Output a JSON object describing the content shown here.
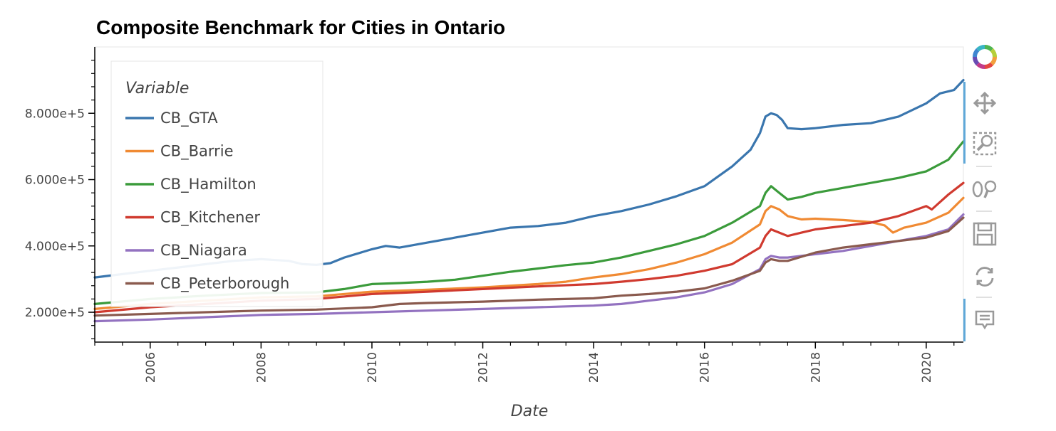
{
  "chart_data": {
    "type": "line",
    "title": "Composite Benchmark for Cities in Ontario",
    "xlabel": "Date",
    "ylabel": "",
    "legend_title": "Variable",
    "legend_position": "top-left",
    "xlim": [
      2005.0,
      2020.67
    ],
    "ylim": [
      110000,
      1000000
    ],
    "x_ticks": [
      2006,
      2008,
      2010,
      2012,
      2014,
      2016,
      2018,
      2020
    ],
    "y_ticks": [
      200000,
      400000,
      600000,
      800000
    ],
    "y_tick_labels": [
      "2.000e+5",
      "4.000e+5",
      "6.000e+5",
      "8.000e+5"
    ],
    "grid": false,
    "series": [
      {
        "name": "CB_GTA",
        "color": "#3a76ae",
        "x": [
          2005.0,
          2005.5,
          2006.0,
          2006.5,
          2007.0,
          2007.5,
          2008.0,
          2008.5,
          2008.75,
          2009.0,
          2009.25,
          2009.5,
          2010.0,
          2010.25,
          2010.5,
          2011.0,
          2011.5,
          2012.0,
          2012.5,
          2013.0,
          2013.5,
          2014.0,
          2014.5,
          2015.0,
          2015.5,
          2016.0,
          2016.5,
          2016.83,
          2017.0,
          2017.1,
          2017.2,
          2017.3,
          2017.4,
          2017.5,
          2017.75,
          2018.0,
          2018.5,
          2019.0,
          2019.5,
          2020.0,
          2020.25,
          2020.5,
          2020.67
        ],
        "y": [
          305000,
          315000,
          325000,
          335000,
          345000,
          355000,
          360000,
          355000,
          345000,
          343000,
          348000,
          365000,
          390000,
          400000,
          395000,
          410000,
          425000,
          440000,
          455000,
          460000,
          470000,
          490000,
          505000,
          525000,
          550000,
          580000,
          640000,
          690000,
          740000,
          790000,
          800000,
          795000,
          780000,
          755000,
          752000,
          755000,
          765000,
          770000,
          790000,
          830000,
          860000,
          870000,
          900000
        ]
      },
      {
        "name": "CB_Barrie",
        "color": "#f08a33",
        "x": [
          2005.0,
          2006.0,
          2007.0,
          2008.0,
          2009.0,
          2010.0,
          2011.0,
          2012.0,
          2013.0,
          2013.5,
          2014.0,
          2014.5,
          2015.0,
          2015.5,
          2016.0,
          2016.5,
          2017.0,
          2017.1,
          2017.2,
          2017.35,
          2017.5,
          2017.75,
          2018.0,
          2018.5,
          2019.0,
          2019.25,
          2019.4,
          2019.6,
          2020.0,
          2020.4,
          2020.67
        ],
        "y": [
          210000,
          225000,
          235000,
          245000,
          248000,
          262000,
          268000,
          275000,
          285000,
          292000,
          305000,
          315000,
          330000,
          350000,
          375000,
          410000,
          465000,
          505000,
          520000,
          510000,
          490000,
          480000,
          482000,
          478000,
          472000,
          462000,
          440000,
          455000,
          470000,
          500000,
          545000
        ]
      },
      {
        "name": "CB_Hamilton",
        "color": "#3b9b3b",
        "x": [
          2005.0,
          2006.0,
          2007.0,
          2008.0,
          2009.0,
          2009.5,
          2010.0,
          2010.5,
          2011.0,
          2011.5,
          2012.0,
          2012.5,
          2013.0,
          2013.5,
          2014.0,
          2014.5,
          2015.0,
          2015.5,
          2016.0,
          2016.5,
          2017.0,
          2017.1,
          2017.2,
          2017.35,
          2017.5,
          2017.75,
          2018.0,
          2018.5,
          2019.0,
          2019.5,
          2020.0,
          2020.4,
          2020.67
        ],
        "y": [
          225000,
          240000,
          250000,
          258000,
          260000,
          270000,
          285000,
          288000,
          292000,
          298000,
          310000,
          322000,
          332000,
          342000,
          350000,
          365000,
          385000,
          405000,
          430000,
          470000,
          520000,
          560000,
          580000,
          560000,
          540000,
          548000,
          560000,
          575000,
          590000,
          605000,
          625000,
          660000,
          715000
        ]
      },
      {
        "name": "CB_Kitchener",
        "color": "#d03a2f",
        "x": [
          2005.0,
          2006.0,
          2007.0,
          2008.0,
          2009.0,
          2010.0,
          2011.0,
          2012.0,
          2013.0,
          2014.0,
          2014.5,
          2015.0,
          2015.5,
          2016.0,
          2016.5,
          2017.0,
          2017.1,
          2017.2,
          2017.35,
          2017.5,
          2017.75,
          2018.0,
          2018.5,
          2019.0,
          2019.5,
          2020.0,
          2020.1,
          2020.2,
          2020.4,
          2020.67
        ],
        "y": [
          200000,
          215000,
          225000,
          235000,
          240000,
          255000,
          262000,
          270000,
          278000,
          285000,
          292000,
          300000,
          310000,
          325000,
          345000,
          395000,
          430000,
          450000,
          440000,
          430000,
          440000,
          450000,
          460000,
          470000,
          490000,
          520000,
          510000,
          525000,
          555000,
          590000
        ]
      },
      {
        "name": "CB_Niagara",
        "color": "#9372c0",
        "x": [
          2005.0,
          2006.0,
          2007.0,
          2008.0,
          2009.0,
          2010.0,
          2011.0,
          2012.0,
          2013.0,
          2014.0,
          2014.5,
          2015.0,
          2015.5,
          2016.0,
          2016.5,
          2017.0,
          2017.1,
          2017.2,
          2017.35,
          2017.5,
          2018.0,
          2018.5,
          2019.0,
          2019.5,
          2020.0,
          2020.4,
          2020.67
        ],
        "y": [
          173000,
          178000,
          185000,
          192000,
          195000,
          200000,
          205000,
          210000,
          215000,
          220000,
          225000,
          235000,
          245000,
          260000,
          285000,
          330000,
          360000,
          370000,
          365000,
          365000,
          375000,
          385000,
          400000,
          415000,
          430000,
          450000,
          495000
        ]
      },
      {
        "name": "CB_Peterborough",
        "color": "#8a5a4e",
        "x": [
          2005.0,
          2006.0,
          2007.0,
          2008.0,
          2009.0,
          2010.0,
          2010.5,
          2011.0,
          2012.0,
          2013.0,
          2014.0,
          2014.5,
          2015.0,
          2015.5,
          2016.0,
          2016.5,
          2017.0,
          2017.1,
          2017.2,
          2017.35,
          2017.5,
          2018.0,
          2018.5,
          2019.0,
          2019.5,
          2020.0,
          2020.4,
          2020.67
        ],
        "y": [
          190000,
          195000,
          200000,
          205000,
          208000,
          215000,
          225000,
          228000,
          232000,
          238000,
          242000,
          250000,
          255000,
          262000,
          272000,
          295000,
          325000,
          350000,
          360000,
          355000,
          355000,
          380000,
          395000,
          405000,
          415000,
          425000,
          445000,
          485000
        ]
      }
    ]
  },
  "toolbar": {
    "tools": [
      "bokeh-logo-icon",
      "pan-icon",
      "box-zoom-icon",
      "wheel-zoom-icon",
      "save-icon",
      "reset-icon",
      "hover-icon"
    ]
  }
}
